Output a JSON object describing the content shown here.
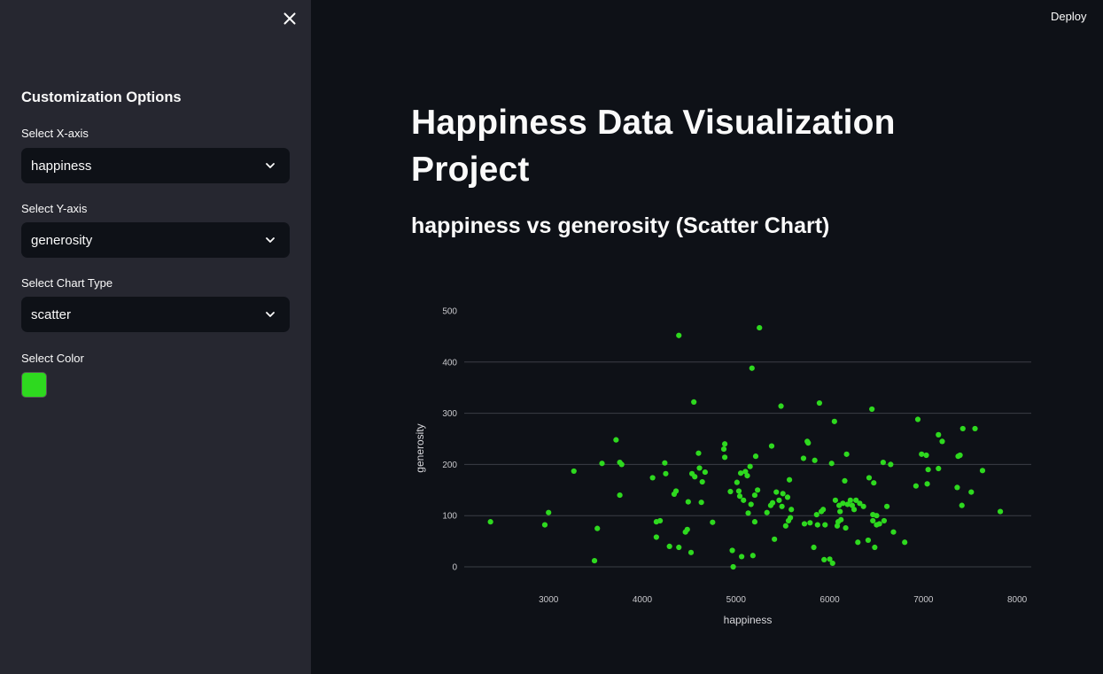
{
  "sidebar": {
    "title": "Customization Options",
    "x_label": "Select X-axis",
    "x_value": "happiness",
    "y_label": "Select Y-axis",
    "y_value": "generosity",
    "type_label": "Select Chart Type",
    "type_value": "scatter",
    "color_label": "Select Color",
    "color_value": "#2ed91f"
  },
  "header": {
    "deploy_label": "Deploy"
  },
  "main": {
    "title": "Happiness Data Visualization Project",
    "subtitle": "happiness vs generosity (Scatter Chart)"
  },
  "chart_data": {
    "type": "scatter",
    "xlabel": "happiness",
    "ylabel": "generosity",
    "xlim": [
      2100,
      8150
    ],
    "ylim": [
      0,
      500
    ],
    "x_ticks": [
      3000,
      4000,
      5000,
      6000,
      7000,
      8000
    ],
    "y_ticks": [
      0,
      100,
      200,
      300,
      400,
      500
    ],
    "grid": "horizontal",
    "color": "#2ed91f",
    "points": [
      [
        2380,
        88
      ],
      [
        2960,
        82
      ],
      [
        3000,
        106
      ],
      [
        3270,
        187
      ],
      [
        3490,
        12
      ],
      [
        3520,
        75
      ],
      [
        3570,
        202
      ],
      [
        3720,
        248
      ],
      [
        3760,
        140
      ],
      [
        3780,
        200
      ],
      [
        3760,
        204
      ],
      [
        4110,
        174
      ],
      [
        4150,
        88
      ],
      [
        4150,
        58
      ],
      [
        4190,
        90
      ],
      [
        4240,
        203
      ],
      [
        4250,
        182
      ],
      [
        4290,
        40
      ],
      [
        4340,
        142
      ],
      [
        4360,
        148
      ],
      [
        4390,
        38
      ],
      [
        4390,
        452
      ],
      [
        4460,
        68
      ],
      [
        4480,
        73
      ],
      [
        4490,
        127
      ],
      [
        4520,
        28
      ],
      [
        4530,
        182
      ],
      [
        4550,
        322
      ],
      [
        4560,
        176
      ],
      [
        4600,
        222
      ],
      [
        4610,
        193
      ],
      [
        4630,
        126
      ],
      [
        4640,
        166
      ],
      [
        4670,
        185
      ],
      [
        4750,
        87
      ],
      [
        4870,
        230
      ],
      [
        4880,
        240
      ],
      [
        4880,
        214
      ],
      [
        4940,
        147
      ],
      [
        4960,
        32
      ],
      [
        4970,
        0
      ],
      [
        5010,
        165
      ],
      [
        5030,
        148
      ],
      [
        5040,
        138
      ],
      [
        5050,
        183
      ],
      [
        5060,
        20
      ],
      [
        5080,
        130
      ],
      [
        5100,
        186
      ],
      [
        5120,
        178
      ],
      [
        5130,
        105
      ],
      [
        5150,
        196
      ],
      [
        5160,
        122
      ],
      [
        5170,
        388
      ],
      [
        5180,
        22
      ],
      [
        5200,
        88
      ],
      [
        5200,
        140
      ],
      [
        5210,
        216
      ],
      [
        5230,
        150
      ],
      [
        5250,
        467
      ],
      [
        5330,
        106
      ],
      [
        5370,
        120
      ],
      [
        5380,
        236
      ],
      [
        5390,
        125
      ],
      [
        5410,
        54
      ],
      [
        5430,
        146
      ],
      [
        5460,
        130
      ],
      [
        5480,
        314
      ],
      [
        5490,
        118
      ],
      [
        5500,
        143
      ],
      [
        5530,
        80
      ],
      [
        5550,
        136
      ],
      [
        5560,
        90
      ],
      [
        5570,
        170
      ],
      [
        5580,
        96
      ],
      [
        5590,
        112
      ],
      [
        5720,
        212
      ],
      [
        5730,
        84
      ],
      [
        5760,
        245
      ],
      [
        5770,
        242
      ],
      [
        5790,
        86
      ],
      [
        5830,
        38
      ],
      [
        5840,
        208
      ],
      [
        5860,
        102
      ],
      [
        5870,
        82
      ],
      [
        5890,
        320
      ],
      [
        5910,
        108
      ],
      [
        5930,
        112
      ],
      [
        5940,
        14
      ],
      [
        5950,
        82
      ],
      [
        6000,
        15
      ],
      [
        6020,
        202
      ],
      [
        6030,
        7
      ],
      [
        6050,
        284
      ],
      [
        6060,
        130
      ],
      [
        6080,
        80
      ],
      [
        6090,
        88
      ],
      [
        6100,
        120
      ],
      [
        6110,
        108
      ],
      [
        6120,
        92
      ],
      [
        6140,
        124
      ],
      [
        6160,
        168
      ],
      [
        6170,
        76
      ],
      [
        6180,
        220
      ],
      [
        6190,
        122
      ],
      [
        6220,
        130
      ],
      [
        6240,
        120
      ],
      [
        6260,
        112
      ],
      [
        6280,
        130
      ],
      [
        6300,
        48
      ],
      [
        6320,
        124
      ],
      [
        6360,
        118
      ],
      [
        6410,
        52
      ],
      [
        6420,
        174
      ],
      [
        6450,
        308
      ],
      [
        6460,
        90
      ],
      [
        6460,
        102
      ],
      [
        6470,
        164
      ],
      [
        6480,
        38
      ],
      [
        6500,
        100
      ],
      [
        6500,
        82
      ],
      [
        6530,
        84
      ],
      [
        6570,
        204
      ],
      [
        6580,
        90
      ],
      [
        6610,
        118
      ],
      [
        6650,
        200
      ],
      [
        6680,
        68
      ],
      [
        6800,
        48
      ],
      [
        6920,
        158
      ],
      [
        6940,
        288
      ],
      [
        6980,
        220
      ],
      [
        7030,
        218
      ],
      [
        7040,
        162
      ],
      [
        7050,
        190
      ],
      [
        7160,
        258
      ],
      [
        7160,
        192
      ],
      [
        7200,
        245
      ],
      [
        7360,
        155
      ],
      [
        7370,
        216
      ],
      [
        7390,
        218
      ],
      [
        7410,
        120
      ],
      [
        7420,
        270
      ],
      [
        7510,
        146
      ],
      [
        7550,
        270
      ],
      [
        7630,
        188
      ],
      [
        7820,
        108
      ]
    ]
  }
}
